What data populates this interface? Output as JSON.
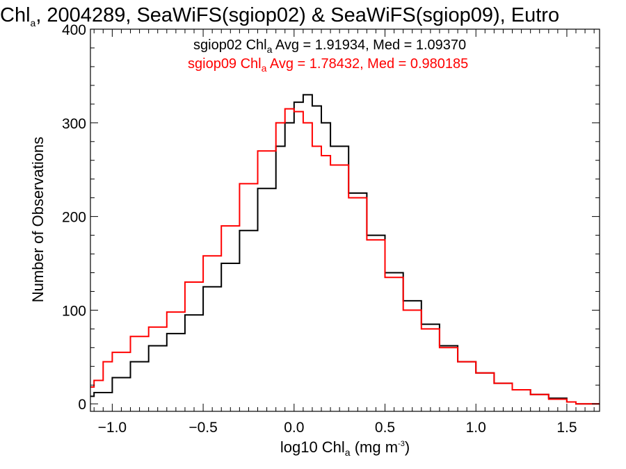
{
  "chart_data": {
    "type": "line",
    "title": {
      "main": "Chl",
      "sub": "a",
      "rest": ", 2004289, SeaWiFS(sgiop02) & SeaWiFS(sgiop09), Eutro"
    },
    "xlabel": {
      "pre": "log10 Chl",
      "sub": "a",
      "mid": " (mg m",
      "sup": "-3",
      "post": ")"
    },
    "ylabel": "Number of Observations",
    "xlim": [
      -1.12,
      1.68
    ],
    "ylim": [
      -8,
      400
    ],
    "xticks": [
      -1.0,
      -0.5,
      0.0,
      0.5,
      1.0,
      1.5
    ],
    "xtick_labels": [
      "−1.0",
      "−0.5",
      "0.0",
      "0.5",
      "1.0",
      "1.5"
    ],
    "yticks": [
      0,
      100,
      200,
      300,
      400
    ],
    "ytick_labels": [
      "0",
      "100",
      "200",
      "300",
      "400"
    ],
    "grid": false,
    "annotations": [
      {
        "series": "sgiop02",
        "color": "#000000",
        "pre": "sgiop02 Chl",
        "sub": "a",
        "post": " Avg = 1.91934, Med = 1.09370"
      },
      {
        "series": "sgiop09",
        "color": "#ff0000",
        "pre": "sgiop09 Chl",
        "sub": "a",
        "post": " Avg = 1.78432, Med = 0.980185"
      }
    ],
    "series": [
      {
        "name": "sgiop02",
        "color": "#000000",
        "x": [
          -1.12,
          -1.1,
          -1.0,
          -0.9,
          -0.8,
          -0.7,
          -0.6,
          -0.5,
          -0.4,
          -0.3,
          -0.2,
          -0.1,
          -0.05,
          0.0,
          0.05,
          0.1,
          0.15,
          0.2,
          0.3,
          0.4,
          0.5,
          0.6,
          0.7,
          0.8,
          0.9,
          1.0,
          1.1,
          1.2,
          1.3,
          1.4,
          1.5,
          1.55,
          1.68
        ],
        "y": [
          8,
          12,
          28,
          45,
          62,
          75,
          95,
          125,
          150,
          185,
          230,
          275,
          300,
          322,
          330,
          318,
          300,
          275,
          225,
          180,
          140,
          110,
          85,
          62,
          45,
          33,
          22,
          15,
          10,
          6,
          2,
          0,
          0
        ]
      },
      {
        "name": "sgiop09",
        "color": "#ff0000",
        "x": [
          -1.12,
          -1.1,
          -1.05,
          -1.0,
          -0.9,
          -0.8,
          -0.7,
          -0.6,
          -0.5,
          -0.4,
          -0.3,
          -0.2,
          -0.1,
          -0.05,
          0.0,
          0.05,
          0.1,
          0.15,
          0.2,
          0.3,
          0.4,
          0.5,
          0.6,
          0.7,
          0.8,
          0.9,
          1.0,
          1.1,
          1.2,
          1.3,
          1.4,
          1.5,
          1.55,
          1.68
        ],
        "y": [
          18,
          25,
          45,
          55,
          72,
          82,
          98,
          130,
          158,
          190,
          235,
          270,
          300,
          315,
          312,
          300,
          275,
          265,
          255,
          220,
          175,
          135,
          100,
          80,
          60,
          45,
          33,
          22,
          15,
          10,
          5,
          2,
          0,
          0
        ]
      }
    ]
  }
}
